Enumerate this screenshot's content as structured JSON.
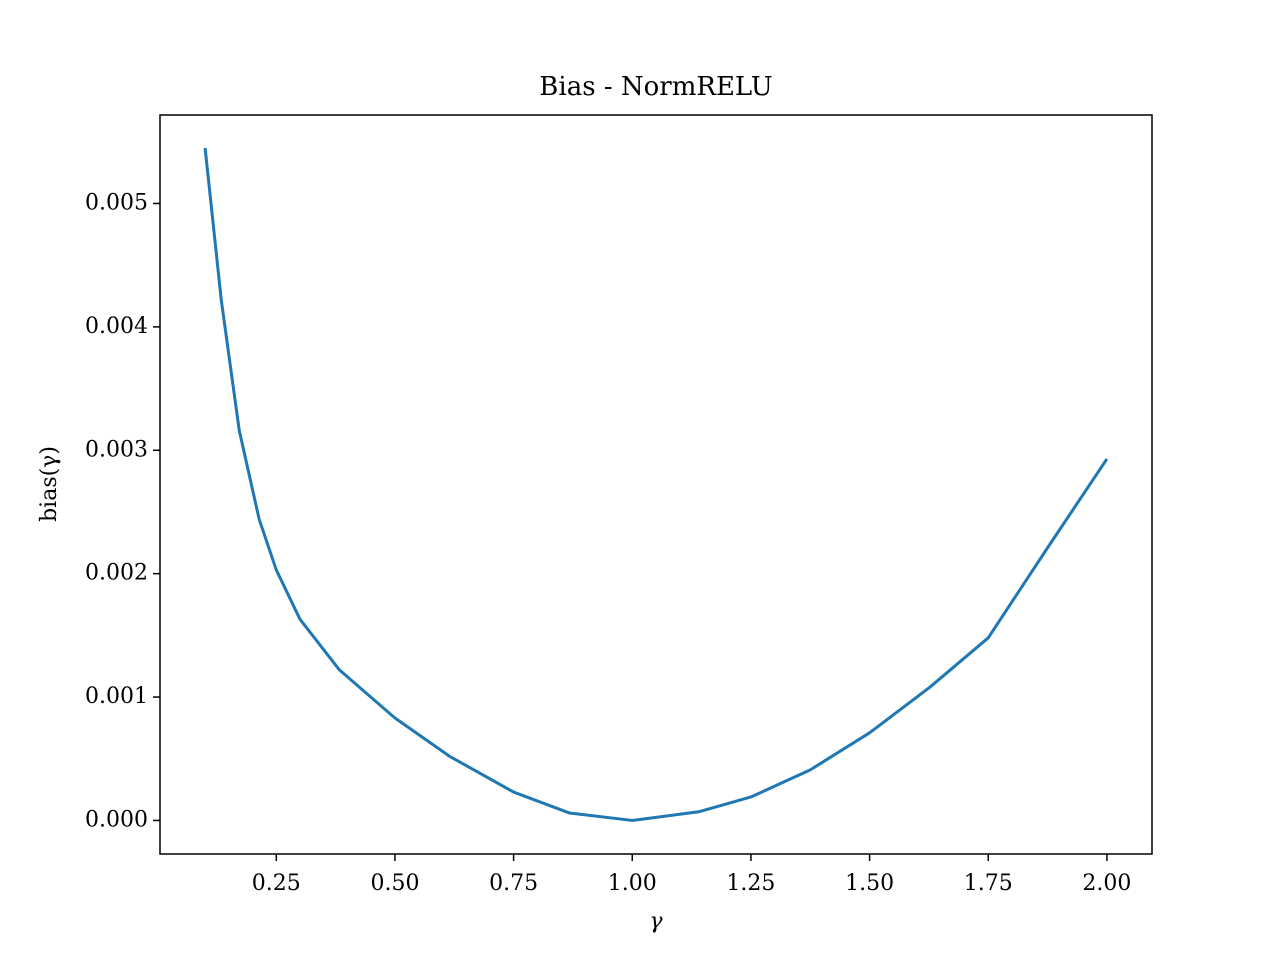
{
  "chart_data": {
    "type": "line",
    "title": "Bias - NormRELU",
    "x_label": "γ",
    "y_label": "bias(γ)",
    "x": [
      0.1,
      0.134,
      0.172,
      0.214,
      0.25,
      0.3,
      0.383,
      0.5,
      0.615,
      0.75,
      0.868,
      1.0,
      1.14,
      1.25,
      1.375,
      1.5,
      1.627,
      1.75,
      1.875,
      2.0
    ],
    "series": [
      {
        "name": "bias",
        "color": "#1f77b4",
        "values": [
          0.00545,
          0.00422,
          0.00316,
          0.00244,
          0.00203,
          0.00163,
          0.00122,
          0.00083,
          0.00052,
          0.00023,
          6e-05,
          0,
          7e-05,
          0.00019,
          0.00041,
          0.00071,
          0.00108,
          0.00148,
          0.00221,
          0.00293
        ]
      }
    ],
    "xlim": [
      0.005,
      2.095
    ],
    "ylim": [
      -0.000272,
      0.005717
    ],
    "xticks": [
      0.25,
      {
        "value": 0.5,
        "label": "0.50"
      },
      0.75,
      {
        "value": 1,
        "label": "1.00"
      },
      1.25,
      {
        "value": 1.5,
        "label": "1.50"
      },
      1.75,
      {
        "value": 2,
        "label": "2.00"
      }
    ],
    "yticks": [
      {
        "value": 0,
        "label": "0.000"
      },
      0.001,
      0.002,
      0.003,
      0.004,
      0.005
    ],
    "grid": false
  }
}
